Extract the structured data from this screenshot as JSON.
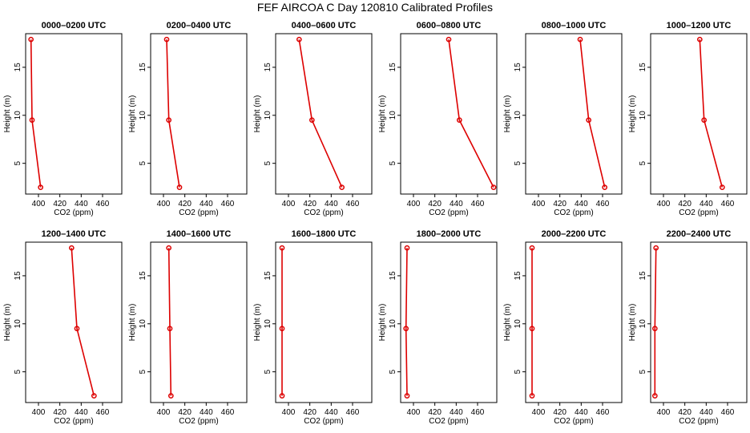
{
  "title": "FEF AIRCOA C  Day 120810  Calibrated Profiles",
  "colors": {
    "series": "#dd0000",
    "axis": "#000000",
    "background": "#ffffff"
  },
  "chart_data": [
    {
      "type": "line",
      "title": "0000–0200 UTC",
      "xlabel": "CO2 (ppm)",
      "ylabel": "Height (m)",
      "xlim": [
        388,
        478
      ],
      "ylim": [
        1.8,
        18.5
      ],
      "xticks": [
        400,
        420,
        440,
        460
      ],
      "yticks": [
        5,
        10,
        15
      ],
      "x": [
        393,
        394,
        402
      ],
      "y": [
        17.9,
        9.5,
        2.5
      ]
    },
    {
      "type": "line",
      "title": "0200–0400 UTC",
      "xlabel": "CO2 (ppm)",
      "ylabel": "Height (m)",
      "xlim": [
        388,
        478
      ],
      "ylim": [
        1.8,
        18.5
      ],
      "xticks": [
        400,
        420,
        440,
        460
      ],
      "yticks": [
        5,
        10,
        15
      ],
      "x": [
        403,
        405,
        415
      ],
      "y": [
        17.9,
        9.5,
        2.5
      ]
    },
    {
      "type": "line",
      "title": "0400–0600 UTC",
      "xlabel": "CO2 (ppm)",
      "ylabel": "Height (m)",
      "xlim": [
        388,
        478
      ],
      "ylim": [
        1.8,
        18.5
      ],
      "xticks": [
        400,
        420,
        440,
        460
      ],
      "yticks": [
        5,
        10,
        15
      ],
      "x": [
        410,
        422,
        450
      ],
      "y": [
        17.9,
        9.5,
        2.5
      ]
    },
    {
      "type": "line",
      "title": "0600–0800 UTC",
      "xlabel": "CO2 (ppm)",
      "ylabel": "Height (m)",
      "xlim": [
        388,
        478
      ],
      "ylim": [
        1.8,
        18.5
      ],
      "xticks": [
        400,
        420,
        440,
        460
      ],
      "yticks": [
        5,
        10,
        15
      ],
      "x": [
        433,
        443,
        475
      ],
      "y": [
        17.9,
        9.5,
        2.5
      ]
    },
    {
      "type": "line",
      "title": "0800–1000 UTC",
      "xlabel": "CO2 (ppm)",
      "ylabel": "Height (m)",
      "xlim": [
        388,
        478
      ],
      "ylim": [
        1.8,
        18.5
      ],
      "xticks": [
        400,
        420,
        440,
        460
      ],
      "yticks": [
        5,
        10,
        15
      ],
      "x": [
        439,
        447,
        462
      ],
      "y": [
        17.9,
        9.5,
        2.5
      ]
    },
    {
      "type": "line",
      "title": "1000–1200 UTC",
      "xlabel": "CO2 (ppm)",
      "ylabel": "Height (m)",
      "xlim": [
        388,
        478
      ],
      "ylim": [
        1.8,
        18.5
      ],
      "xticks": [
        400,
        420,
        440,
        460
      ],
      "yticks": [
        5,
        10,
        15
      ],
      "x": [
        434,
        438,
        455
      ],
      "y": [
        17.9,
        9.5,
        2.5
      ]
    },
    {
      "type": "line",
      "title": "1200–1400 UTC",
      "xlabel": "CO2 (ppm)",
      "ylabel": "Height (m)",
      "xlim": [
        388,
        478
      ],
      "ylim": [
        1.8,
        18.5
      ],
      "xticks": [
        400,
        420,
        440,
        460
      ],
      "yticks": [
        5,
        10,
        15
      ],
      "x": [
        431,
        436,
        452
      ],
      "y": [
        17.9,
        9.5,
        2.5
      ]
    },
    {
      "type": "line",
      "title": "1400–1600 UTC",
      "xlabel": "CO2 (ppm)",
      "ylabel": "Height (m)",
      "xlim": [
        388,
        478
      ],
      "ylim": [
        1.8,
        18.5
      ],
      "xticks": [
        400,
        420,
        440,
        460
      ],
      "yticks": [
        5,
        10,
        15
      ],
      "x": [
        405,
        406,
        407
      ],
      "y": [
        17.9,
        9.5,
        2.5
      ]
    },
    {
      "type": "line",
      "title": "1600–1800 UTC",
      "xlabel": "CO2 (ppm)",
      "ylabel": "Height (m)",
      "xlim": [
        388,
        478
      ],
      "ylim": [
        1.8,
        18.5
      ],
      "xticks": [
        400,
        420,
        440,
        460
      ],
      "yticks": [
        5,
        10,
        15
      ],
      "x": [
        394,
        394,
        394
      ],
      "y": [
        17.9,
        9.5,
        2.5
      ]
    },
    {
      "type": "line",
      "title": "1800–2000 UTC",
      "xlabel": "CO2 (ppm)",
      "ylabel": "Height (m)",
      "xlim": [
        388,
        478
      ],
      "ylim": [
        1.8,
        18.5
      ],
      "xticks": [
        400,
        420,
        440,
        460
      ],
      "yticks": [
        5,
        10,
        15
      ],
      "x": [
        394,
        393,
        394
      ],
      "y": [
        17.9,
        9.5,
        2.5
      ]
    },
    {
      "type": "line",
      "title": "2000–2200 UTC",
      "xlabel": "CO2 (ppm)",
      "ylabel": "Height (m)",
      "xlim": [
        388,
        478
      ],
      "ylim": [
        1.8,
        18.5
      ],
      "xticks": [
        400,
        420,
        440,
        460
      ],
      "yticks": [
        5,
        10,
        15
      ],
      "x": [
        394,
        394,
        394
      ],
      "y": [
        17.9,
        9.5,
        2.5
      ]
    },
    {
      "type": "line",
      "title": "2200–2400 UTC",
      "xlabel": "CO2 (ppm)",
      "ylabel": "Height (m)",
      "xlim": [
        388,
        478
      ],
      "ylim": [
        1.8,
        18.5
      ],
      "xticks": [
        400,
        420,
        440,
        460
      ],
      "yticks": [
        5,
        10,
        15
      ],
      "x": [
        393,
        392,
        392
      ],
      "y": [
        17.9,
        9.5,
        2.5
      ]
    }
  ]
}
